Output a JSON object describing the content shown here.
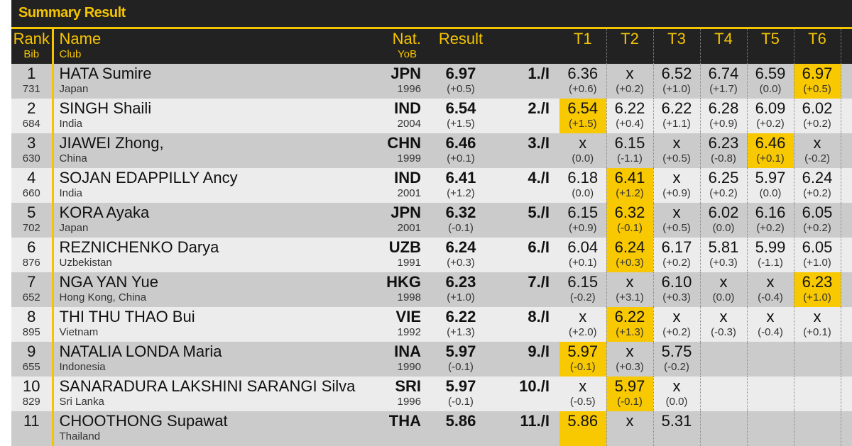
{
  "title": "Summary Result",
  "colors": {
    "accent": "#f5c400",
    "header_bg": "#222222",
    "row_odd": "#cbcbcb",
    "row_even": "#ececec",
    "best": "#f8c800"
  },
  "header": {
    "rank": "Rank",
    "bib": "Bib",
    "name": "Name",
    "club": "Club",
    "nat": "Nat.",
    "yob": "YoB",
    "result": "Result",
    "trials": [
      "T1",
      "T2",
      "T3",
      "T4",
      "T5",
      "T6"
    ]
  },
  "rows": [
    {
      "rank": "1",
      "bib": "731",
      "name": "HATA Sumire",
      "club": "Japan",
      "nat": "JPN",
      "yob": "1996",
      "result": "6.97",
      "wind": "(+0.5)",
      "place": "1./I",
      "trials": [
        [
          "6.36",
          "(+0.6)",
          false
        ],
        [
          "x",
          "(+0.2)",
          false
        ],
        [
          "6.52",
          "(+1.0)",
          false
        ],
        [
          "6.74",
          "(+1.7)",
          false
        ],
        [
          "6.59",
          "(0.0)",
          false
        ],
        [
          "6.97",
          "(+0.5)",
          true
        ]
      ]
    },
    {
      "rank": "2",
      "bib": "684",
      "name": "SINGH Shaili",
      "club": "India",
      "nat": "IND",
      "yob": "2004",
      "result": "6.54",
      "wind": "(+1.5)",
      "place": "2./I",
      "trials": [
        [
          "6.54",
          "(+1.5)",
          true
        ],
        [
          "6.22",
          "(+0.4)",
          false
        ],
        [
          "6.22",
          "(+1.1)",
          false
        ],
        [
          "6.28",
          "(+0.9)",
          false
        ],
        [
          "6.09",
          "(+0.2)",
          false
        ],
        [
          "6.02",
          "(+0.2)",
          false
        ]
      ]
    },
    {
      "rank": "3",
      "bib": "630",
      "name": "JIAWEI Zhong,",
      "club": "China",
      "nat": "CHN",
      "yob": "1999",
      "result": "6.46",
      "wind": "(+0.1)",
      "place": "3./I",
      "trials": [
        [
          "x",
          "(0.0)",
          false
        ],
        [
          "6.15",
          "(-1.1)",
          false
        ],
        [
          "x",
          "(+0.5)",
          false
        ],
        [
          "6.23",
          "(-0.8)",
          false
        ],
        [
          "6.46",
          "(+0.1)",
          true
        ],
        [
          "x",
          "(-0.2)",
          false
        ]
      ]
    },
    {
      "rank": "4",
      "bib": "660",
      "name": "SOJAN EDAPPILLY Ancy",
      "club": "India",
      "nat": "IND",
      "yob": "2001",
      "result": "6.41",
      "wind": "(+1.2)",
      "place": "4./I",
      "trials": [
        [
          "6.18",
          "(0.0)",
          false
        ],
        [
          "6.41",
          "(+1.2)",
          true
        ],
        [
          "x",
          "(+0.9)",
          false
        ],
        [
          "6.25",
          "(+0.2)",
          false
        ],
        [
          "5.97",
          "(0.0)",
          false
        ],
        [
          "6.24",
          "(+0.2)",
          false
        ]
      ]
    },
    {
      "rank": "5",
      "bib": "702",
      "name": "KORA Ayaka",
      "club": "Japan",
      "nat": "JPN",
      "yob": "2001",
      "result": "6.32",
      "wind": "(-0.1)",
      "place": "5./I",
      "trials": [
        [
          "6.15",
          "(+0.9)",
          false
        ],
        [
          "6.32",
          "(-0.1)",
          true
        ],
        [
          "x",
          "(+0.5)",
          false
        ],
        [
          "6.02",
          "(0.0)",
          false
        ],
        [
          "6.16",
          "(+0.2)",
          false
        ],
        [
          "6.05",
          "(+0.2)",
          false
        ]
      ]
    },
    {
      "rank": "6",
      "bib": "876",
      "name": "REZNICHENKO Darya",
      "club": "Uzbekistan",
      "nat": "UZB",
      "yob": "1991",
      "result": "6.24",
      "wind": "(+0.3)",
      "place": "6./I",
      "trials": [
        [
          "6.04",
          "(+0.1)",
          false
        ],
        [
          "6.24",
          "(+0.3)",
          true
        ],
        [
          "6.17",
          "(+0.2)",
          false
        ],
        [
          "5.81",
          "(+0.3)",
          false
        ],
        [
          "5.99",
          "(-1.1)",
          false
        ],
        [
          "6.05",
          "(+1.0)",
          false
        ]
      ]
    },
    {
      "rank": "7",
      "bib": "652",
      "name": "NGA YAN Yue",
      "club": "Hong Kong, China",
      "nat": "HKG",
      "yob": "1998",
      "result": "6.23",
      "wind": "(+1.0)",
      "place": "7./I",
      "trials": [
        [
          "6.15",
          "(-0.2)",
          false
        ],
        [
          "x",
          "(+3.1)",
          false
        ],
        [
          "6.10",
          "(+0.3)",
          false
        ],
        [
          "x",
          "(0.0)",
          false
        ],
        [
          "x",
          "(-0.4)",
          false
        ],
        [
          "6.23",
          "(+1.0)",
          true
        ]
      ]
    },
    {
      "rank": "8",
      "bib": "895",
      "name": "THI THU THAO Bui",
      "club": "Vietnam",
      "nat": "VIE",
      "yob": "1992",
      "result": "6.22",
      "wind": "(+1.3)",
      "place": "8./I",
      "trials": [
        [
          "x",
          "(+2.0)",
          false
        ],
        [
          "6.22",
          "(+1.3)",
          true
        ],
        [
          "x",
          "(+0.2)",
          false
        ],
        [
          "x",
          "(-0.3)",
          false
        ],
        [
          "x",
          "(-0.4)",
          false
        ],
        [
          "x",
          "(+0.1)",
          false
        ]
      ]
    },
    {
      "rank": "9",
      "bib": "655",
      "name": "NATALIA LONDA Maria",
      "club": "Indonesia",
      "nat": "INA",
      "yob": "1990",
      "result": "5.97",
      "wind": "(-0.1)",
      "place": "9./I",
      "trials": [
        [
          "5.97",
          "(-0.1)",
          true
        ],
        [
          "x",
          "(+0.3)",
          false
        ],
        [
          "5.75",
          "(-0.2)",
          false
        ],
        [
          "",
          "",
          false
        ],
        [
          "",
          "",
          false
        ],
        [
          "",
          "",
          false
        ]
      ]
    },
    {
      "rank": "10",
      "bib": "829",
      "name": "SANARADURA LAKSHINI SARANGI Silva",
      "club": "Sri Lanka",
      "nat": "SRI",
      "yob": "1996",
      "result": "5.97",
      "wind": "(-0.1)",
      "place": "10./I",
      "trials": [
        [
          "x",
          "(-0.5)",
          false
        ],
        [
          "5.97",
          "(-0.1)",
          true
        ],
        [
          "x",
          "(0.0)",
          false
        ],
        [
          "",
          "",
          false
        ],
        [
          "",
          "",
          false
        ],
        [
          "",
          "",
          false
        ]
      ]
    },
    {
      "rank": "11",
      "bib": "",
      "name": "CHOOTHONG Supawat",
      "club": "Thailand",
      "nat": "THA",
      "yob": "",
      "result": "5.86",
      "wind": "",
      "place": "11./I",
      "trials": [
        [
          "5.86",
          "",
          true
        ],
        [
          "x",
          "",
          false
        ],
        [
          "5.31",
          "",
          false
        ],
        [
          "",
          "",
          false
        ],
        [
          "",
          "",
          false
        ],
        [
          "",
          "",
          false
        ]
      ]
    }
  ]
}
